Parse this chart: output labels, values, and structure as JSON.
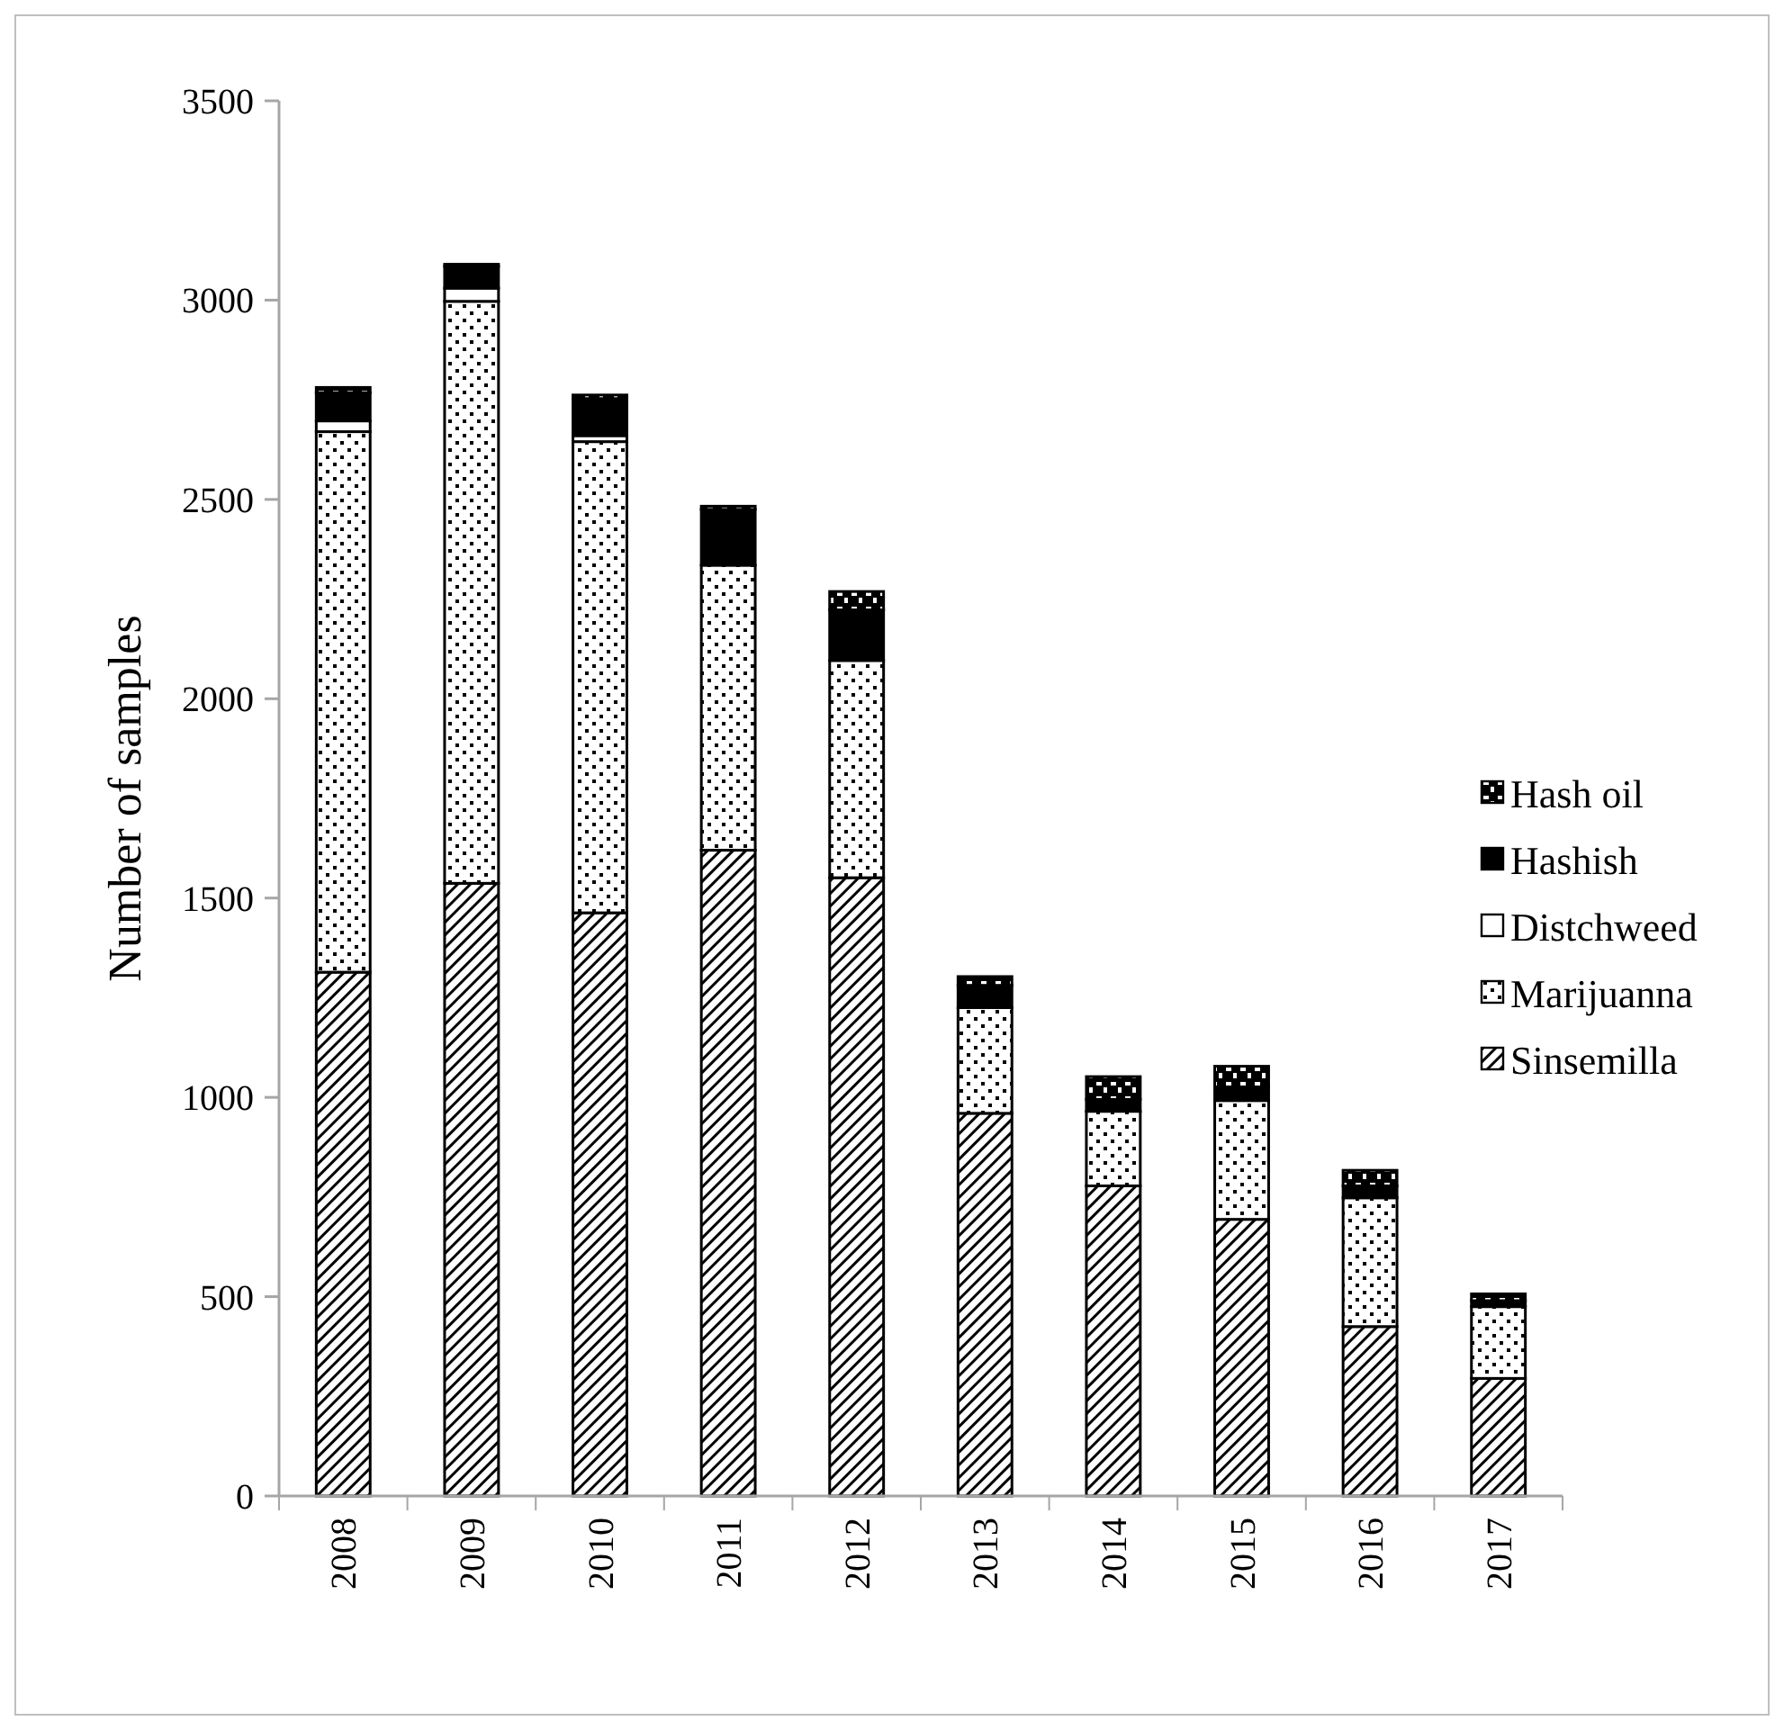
{
  "chart_data": {
    "type": "bar",
    "stacked": true,
    "ylabel": "Number of samples",
    "categories": [
      "2008",
      "2009",
      "2010",
      "2011",
      "2012",
      "2013",
      "2014",
      "2015",
      "2016",
      "2017"
    ],
    "series": [
      {
        "name": "Sinsemilla",
        "color": "#000000",
        "values": [
          1314,
          1537,
          1463,
          1620,
          1551,
          960,
          778,
          694,
          425,
          295
        ]
      },
      {
        "name": "Marijuanna",
        "color": "#000000",
        "values": [
          1356,
          1460,
          1182,
          715,
          545,
          265,
          187,
          298,
          323,
          180
        ]
      },
      {
        "name": "Distchweed",
        "color": "#ffffff",
        "values": [
          27,
          33,
          15,
          0,
          0,
          0,
          0,
          0,
          0,
          0
        ]
      },
      {
        "name": "Hashish",
        "color": "#000000",
        "values": [
          71,
          55,
          93,
          140,
          127,
          56,
          30,
          33,
          30,
          15
        ]
      },
      {
        "name": "Hash oil",
        "color": "#000000",
        "values": [
          13,
          5,
          9,
          8,
          46,
          22,
          57,
          53,
          39,
          17
        ]
      }
    ],
    "ylim": [
      0,
      3500
    ],
    "yticks": [
      0,
      500,
      1000,
      1500,
      2000,
      2500,
      3000,
      3500
    ],
    "grid": false,
    "legend": "right"
  }
}
